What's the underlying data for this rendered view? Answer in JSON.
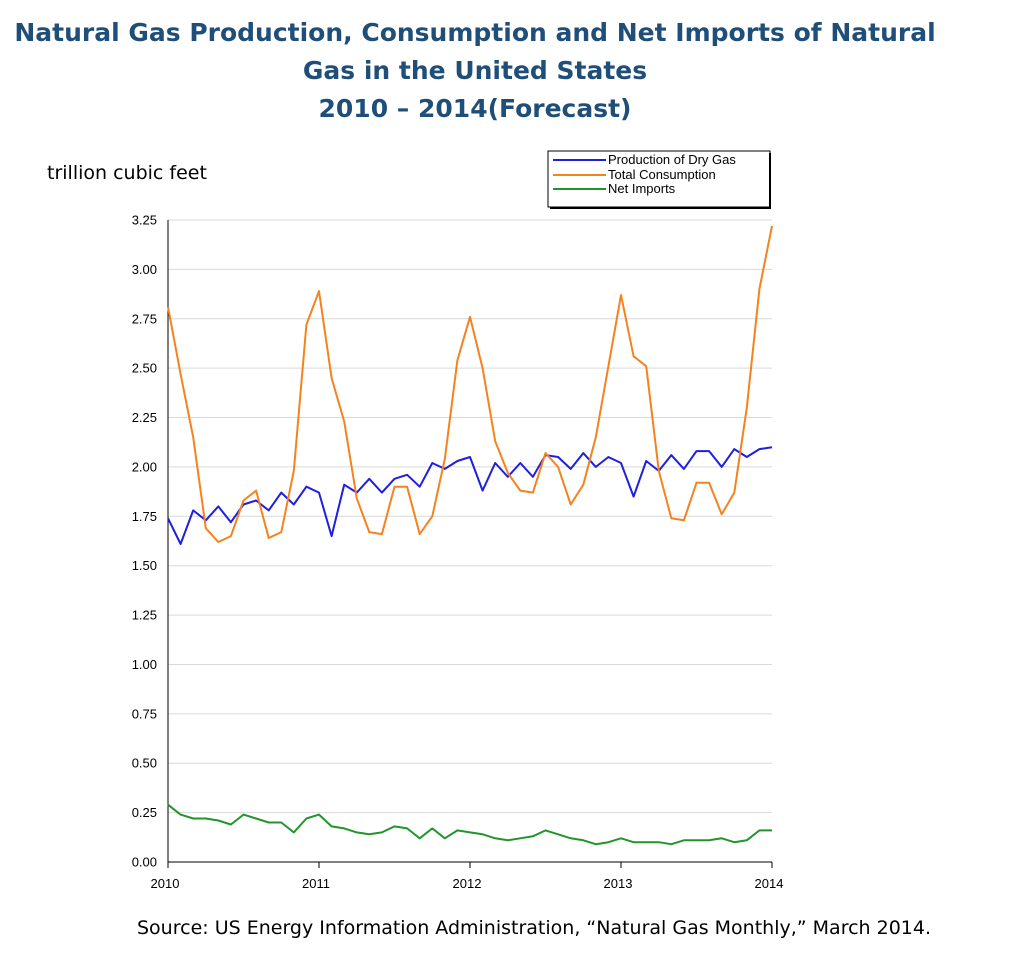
{
  "title": {
    "line1": "Natural Gas Production, Consumption and Net Imports of Natural",
    "line2": "Gas in the United States",
    "line3": "2010 – 2014(Forecast)"
  },
  "ylabel": "trillion cubic feet",
  "source": "Source: US Energy Information Administration, “Natural Gas Monthly,” March 2014.",
  "colors": {
    "production": "#1f1fdf",
    "consumption": "#f5821f",
    "imports": "#21952b",
    "grid": "#d9d9d9"
  },
  "chart_data": {
    "type": "line",
    "x_ticks": [
      "2010",
      "2011",
      "2012",
      "2013",
      "2014"
    ],
    "y_ticks": [
      "0.00",
      "0.25",
      "0.50",
      "0.75",
      "1.00",
      "1.25",
      "1.50",
      "1.75",
      "2.00",
      "2.25",
      "2.50",
      "2.75",
      "3.00",
      "3.25"
    ],
    "xlim": [
      2010,
      2014
    ],
    "ylim": [
      0,
      3.25
    ],
    "grid": "horizontal",
    "legend": "top-right",
    "series": [
      {
        "name": "Production of Dry Gas",
        "values": [
          1.74,
          1.61,
          1.78,
          1.73,
          1.8,
          1.72,
          1.81,
          1.83,
          1.78,
          1.87,
          1.81,
          1.9,
          1.87,
          1.65,
          1.91,
          1.87,
          1.94,
          1.87,
          1.94,
          1.96,
          1.9,
          2.02,
          1.99,
          2.03,
          2.05,
          1.88,
          2.02,
          1.95,
          2.02,
          1.95,
          2.06,
          2.05,
          1.99,
          2.07,
          2.0,
          2.05,
          2.02,
          1.85,
          2.03,
          1.98,
          2.06,
          1.99,
          2.08,
          2.08,
          2.0,
          2.09,
          2.05,
          2.09,
          2.1
        ]
      },
      {
        "name": "Total Consumption",
        "values": [
          2.81,
          2.47,
          2.15,
          1.69,
          1.62,
          1.65,
          1.83,
          1.88,
          1.64,
          1.67,
          1.98,
          2.72,
          2.89,
          2.45,
          2.23,
          1.84,
          1.67,
          1.66,
          1.9,
          1.9,
          1.66,
          1.75,
          2.04,
          2.54,
          2.76,
          2.5,
          2.13,
          1.97,
          1.88,
          1.87,
          2.07,
          2.0,
          1.81,
          1.91,
          2.15,
          2.51,
          2.87,
          2.56,
          2.51,
          1.98,
          1.74,
          1.73,
          1.92,
          1.92,
          1.76,
          1.87,
          2.3,
          2.9,
          3.22
        ]
      },
      {
        "name": "Net Imports",
        "values": [
          0.29,
          0.24,
          0.22,
          0.22,
          0.21,
          0.19,
          0.24,
          0.22,
          0.2,
          0.2,
          0.15,
          0.22,
          0.24,
          0.18,
          0.17,
          0.15,
          0.14,
          0.15,
          0.18,
          0.17,
          0.12,
          0.17,
          0.12,
          0.16,
          0.15,
          0.14,
          0.12,
          0.11,
          0.12,
          0.13,
          0.16,
          0.14,
          0.12,
          0.11,
          0.09,
          0.1,
          0.12,
          0.1,
          0.1,
          0.1,
          0.09,
          0.11,
          0.11,
          0.11,
          0.12,
          0.1,
          0.11,
          0.16,
          0.16
        ]
      }
    ]
  }
}
